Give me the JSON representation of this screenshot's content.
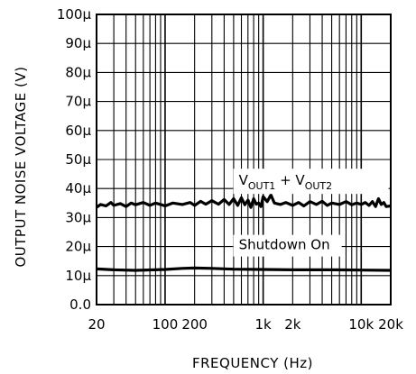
{
  "chart_data": {
    "type": "line",
    "xlabel": "FREQUENCY (Hz)",
    "ylabel": "OUTPUT NOISE VOLTAGE (V)",
    "x_scale": "log",
    "xlim": [
      20,
      20000
    ],
    "ylim": [
      0,
      0.0001
    ],
    "x_tick_labels": [
      {
        "value": 20,
        "label": "20"
      },
      {
        "value": 100,
        "label": "100"
      },
      {
        "value": 200,
        "label": "200"
      },
      {
        "value": 1000,
        "label": "1k"
      },
      {
        "value": 2000,
        "label": "2k"
      },
      {
        "value": 10000,
        "label": "10k"
      },
      {
        "value": 20000,
        "label": "20k"
      }
    ],
    "y_tick_labels": [
      {
        "value": 0.0,
        "label": "0.0"
      },
      {
        "value": 1e-05,
        "label": "10μ"
      },
      {
        "value": 2e-05,
        "label": "20μ"
      },
      {
        "value": 3e-05,
        "label": "30μ"
      },
      {
        "value": 4e-05,
        "label": "40μ"
      },
      {
        "value": 5e-05,
        "label": "50μ"
      },
      {
        "value": 6e-05,
        "label": "60μ"
      },
      {
        "value": 7e-05,
        "label": "70μ"
      },
      {
        "value": 8e-05,
        "label": "80μ"
      },
      {
        "value": 9e-05,
        "label": "90μ"
      },
      {
        "value": 0.0001,
        "label": "100μ"
      }
    ],
    "grid": true,
    "series": [
      {
        "name": "VOUT1 + VOUT2",
        "label_parts": [
          "V",
          "OUT1",
          " + V",
          "OUT2"
        ],
        "x": [
          20,
          22,
          25,
          28,
          30,
          35,
          40,
          45,
          50,
          60,
          70,
          80,
          90,
          100,
          120,
          150,
          180,
          200,
          230,
          260,
          300,
          350,
          400,
          450,
          500,
          550,
          600,
          650,
          700,
          750,
          800,
          850,
          900,
          950,
          1000,
          1100,
          1200,
          1300,
          1500,
          1700,
          2000,
          2300,
          2600,
          3000,
          3500,
          4000,
          4500,
          5000,
          6000,
          7000,
          8000,
          9000,
          10000,
          11000,
          12000,
          13000,
          14000,
          15000,
          16000,
          17000,
          18000,
          20000
        ],
        "y": [
          3.35e-05,
          3.45e-05,
          3.4e-05,
          3.52e-05,
          3.42e-05,
          3.48e-05,
          3.38e-05,
          3.5e-05,
          3.44e-05,
          3.52e-05,
          3.42e-05,
          3.5e-05,
          3.45e-05,
          3.4e-05,
          3.5e-05,
          3.45e-05,
          3.52e-05,
          3.42e-05,
          3.56e-05,
          3.46e-05,
          3.58e-05,
          3.46e-05,
          3.62e-05,
          3.45e-05,
          3.65e-05,
          3.42e-05,
          3.68e-05,
          3.44e-05,
          3.6e-05,
          3.35e-05,
          3.65e-05,
          3.46e-05,
          3.5e-05,
          3.38e-05,
          3.72e-05,
          3.55e-05,
          3.78e-05,
          3.5e-05,
          3.45e-05,
          3.52e-05,
          3.42e-05,
          3.52e-05,
          3.4e-05,
          3.55e-05,
          3.45e-05,
          3.56e-05,
          3.42e-05,
          3.5e-05,
          3.45e-05,
          3.55e-05,
          3.44e-05,
          3.5e-05,
          3.45e-05,
          3.52e-05,
          3.42e-05,
          3.55e-05,
          3.38e-05,
          3.65e-05,
          3.45e-05,
          3.52e-05,
          3.38e-05,
          3.4e-05
        ]
      },
      {
        "name": "Shutdown On",
        "x": [
          20,
          30,
          50,
          100,
          150,
          200,
          300,
          500,
          1000,
          2000,
          5000,
          10000,
          20000
        ],
        "y": [
          1.23e-05,
          1.2e-05,
          1.18e-05,
          1.21e-05,
          1.25e-05,
          1.26e-05,
          1.25e-05,
          1.22e-05,
          1.21e-05,
          1.2e-05,
          1.2e-05,
          1.19e-05,
          1.18e-05
        ]
      }
    ]
  }
}
